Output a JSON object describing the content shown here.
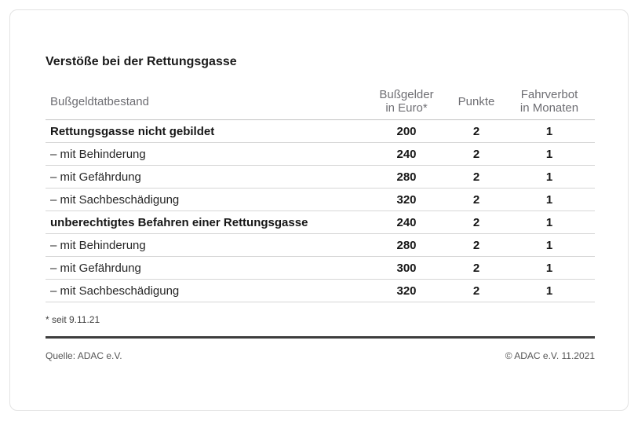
{
  "title": "Verstöße bei der Rettungsgasse",
  "table": {
    "header": {
      "tatbestand": "Bußgeldtatbestand",
      "fine_line1": "Bußgelder",
      "fine_line2": "in Euro*",
      "points": "Punkte",
      "ban_line1": "Fahrverbot",
      "ban_line2": "in Monaten"
    },
    "rows": [
      {
        "label": "Rettungsgasse nicht gebildet",
        "bold": true,
        "fine": "200",
        "points": "2",
        "ban": "1"
      },
      {
        "label": "– mit Behinderung",
        "bold": false,
        "fine": "240",
        "points": "2",
        "ban": "1"
      },
      {
        "label": "– mit Gefährdung",
        "bold": false,
        "fine": "280",
        "points": "2",
        "ban": "1"
      },
      {
        "label": "– mit Sachbeschädigung",
        "bold": false,
        "fine": "320",
        "points": "2",
        "ban": "1"
      },
      {
        "label": "unberechtigtes Befahren einer Rettungsgasse",
        "bold": true,
        "fine": "240",
        "points": "2",
        "ban": "1"
      },
      {
        "label": "– mit Behinderung",
        "bold": false,
        "fine": "280",
        "points": "2",
        "ban": "1"
      },
      {
        "label": "– mit Gefährdung",
        "bold": false,
        "fine": "300",
        "points": "2",
        "ban": "1"
      },
      {
        "label": "– mit Sachbeschädigung",
        "bold": false,
        "fine": "320",
        "points": "2",
        "ban": "1"
      }
    ]
  },
  "footnote": "* seit 9.11.21",
  "footer": {
    "source": "Quelle: ADAC e.V.",
    "copyright": "© ADAC e.V. 11.2021"
  },
  "colors": {
    "card_border": "#e3e3e3",
    "header_text": "#6e6e73",
    "header_rule": "#c3c3c3",
    "row_rule": "#d6d6d6",
    "divider": "#3e3e3e",
    "text_dark": "#1a1a1a"
  },
  "chart_data": {
    "type": "table",
    "title": "Verstöße bei der Rettungsgasse",
    "columns": [
      "Bußgeldtatbestand",
      "Bußgelder in Euro*",
      "Punkte",
      "Fahrverbot in Monaten"
    ],
    "rows": [
      [
        "Rettungsgasse nicht gebildet",
        200,
        2,
        1
      ],
      [
        "– mit Behinderung",
        240,
        2,
        1
      ],
      [
        "– mit Gefährdung",
        280,
        2,
        1
      ],
      [
        "– mit Sachbeschädigung",
        320,
        2,
        1
      ],
      [
        "unberechtigtes Befahren einer Rettungsgasse",
        240,
        2,
        1
      ],
      [
        "– mit Behinderung",
        280,
        2,
        1
      ],
      [
        "– mit Gefährdung",
        300,
        2,
        1
      ],
      [
        "– mit Sachbeschädigung",
        320,
        2,
        1
      ]
    ],
    "footnote": "* seit 9.11.21",
    "source": "Quelle: ADAC e.V.",
    "copyright": "© ADAC e.V. 11.2021",
    "legend_position": "none",
    "grid": "horizontal-rules"
  }
}
